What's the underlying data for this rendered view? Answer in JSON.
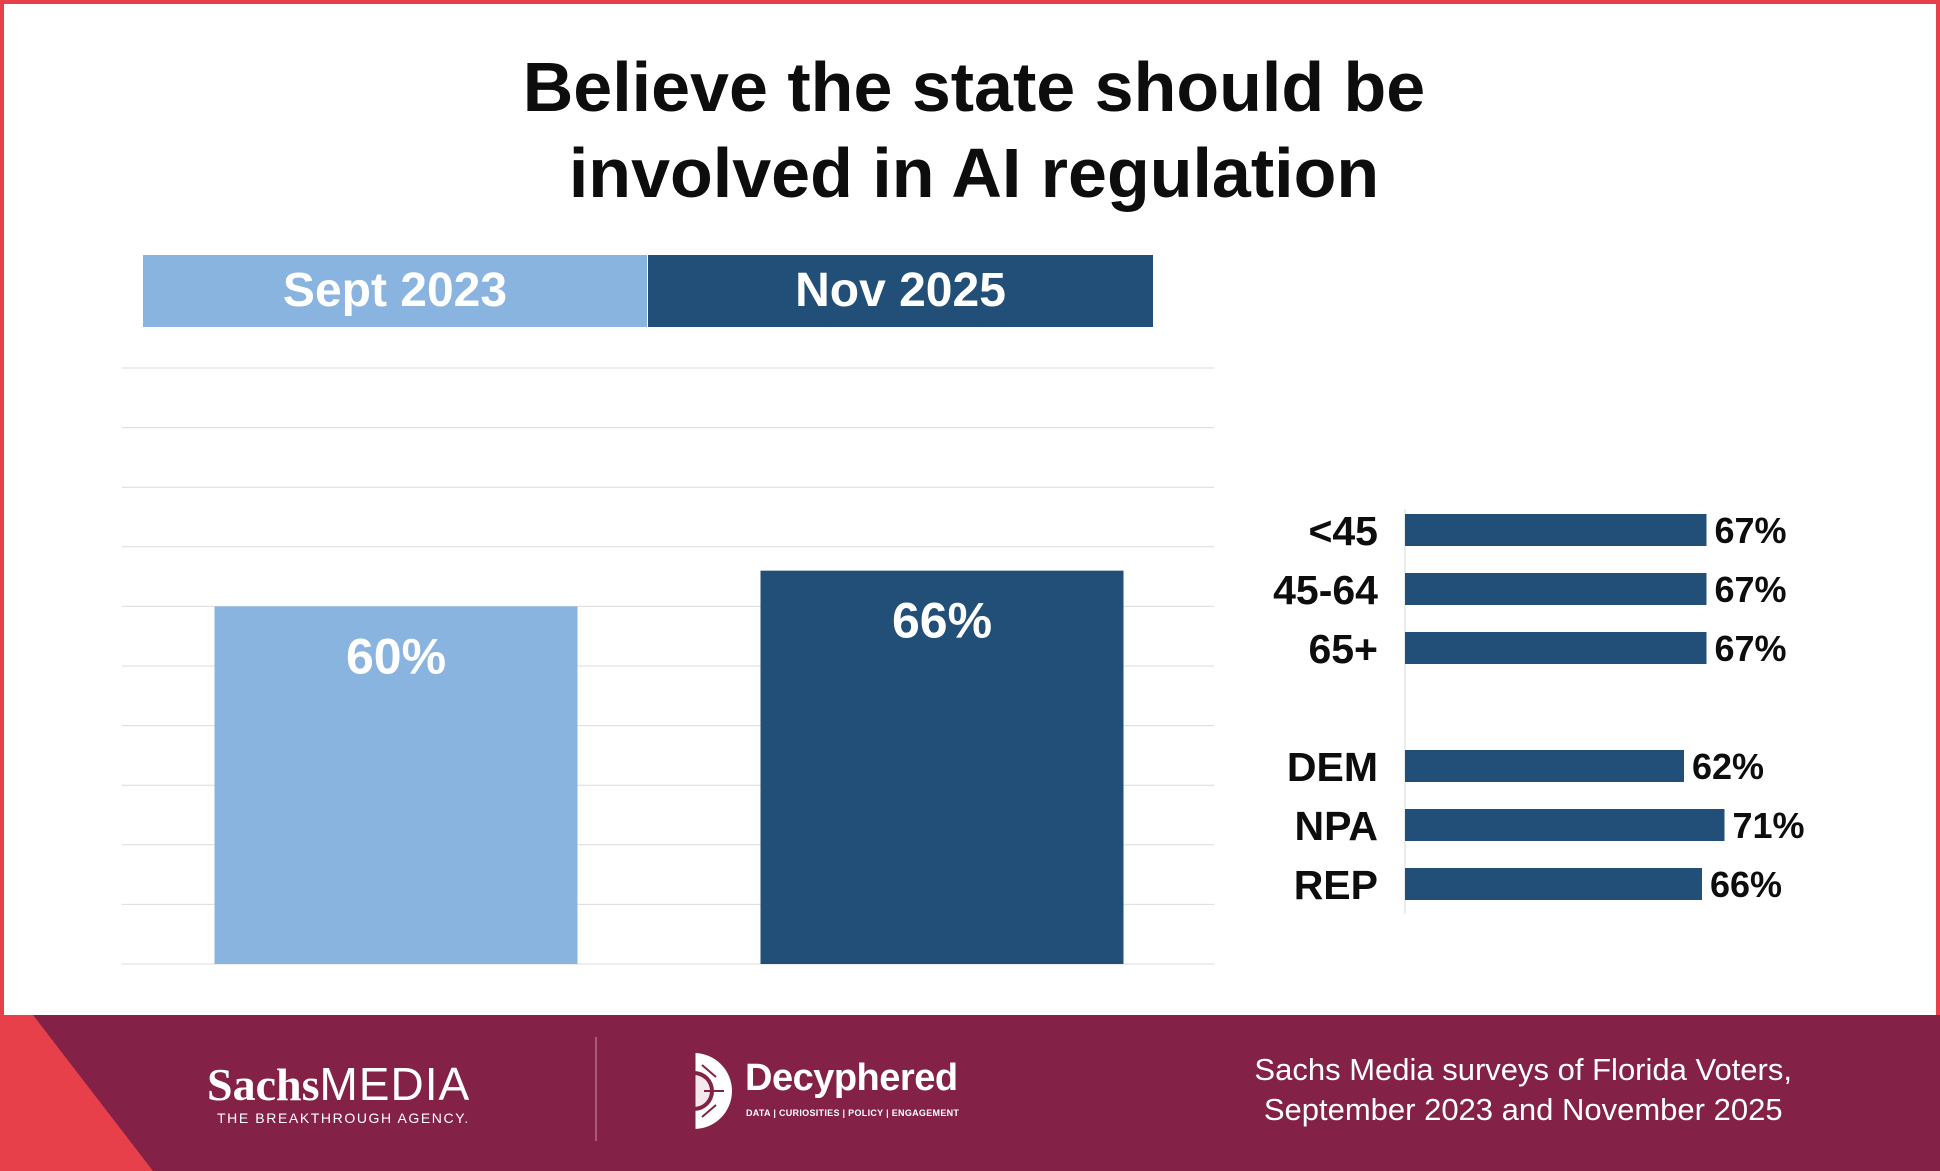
{
  "title_line1": "Believe the state should be",
  "title_line2": "involved in AI regulation",
  "colors": {
    "light": "#8ab4e0",
    "dark": "#214f78",
    "footer": "#832146",
    "accent": "#e8404a"
  },
  "chart_data": [
    {
      "type": "bar",
      "title": "Believe the state should be involved in AI regulation",
      "categories": [
        "Sept 2023",
        "Nov 2025"
      ],
      "values": [
        60,
        66
      ],
      "value_labels": [
        "60%",
        "66%"
      ],
      "ylim": [
        0,
        100
      ],
      "grid": true,
      "legend": [
        "Sept 2023",
        "Nov 2025"
      ]
    },
    {
      "type": "bar",
      "orientation": "horizontal",
      "groups": [
        {
          "categories": [
            "<45",
            "45-64",
            "65+"
          ],
          "values": [
            67,
            67,
            67
          ],
          "value_labels": [
            "67%",
            "67%",
            "67%"
          ]
        },
        {
          "categories": [
            "DEM",
            "NPA",
            "REP"
          ],
          "values": [
            62,
            71,
            66
          ],
          "value_labels": [
            "62%",
            "71%",
            "66%"
          ]
        }
      ]
    }
  ],
  "footer": {
    "sachs_bold": "Sachs",
    "sachs_light": "MEDIA",
    "sachs_tagline": "THE BREAKTHROUGH AGENCY.",
    "decyphered_name": "Decyphered",
    "decyphered_tagline": "DATA | CURIOSITIES | POLICY | ENGAGEMENT",
    "source_line1": "Sachs Media surveys of Florida Voters,",
    "source_line2": "September 2023 and November 2025"
  }
}
